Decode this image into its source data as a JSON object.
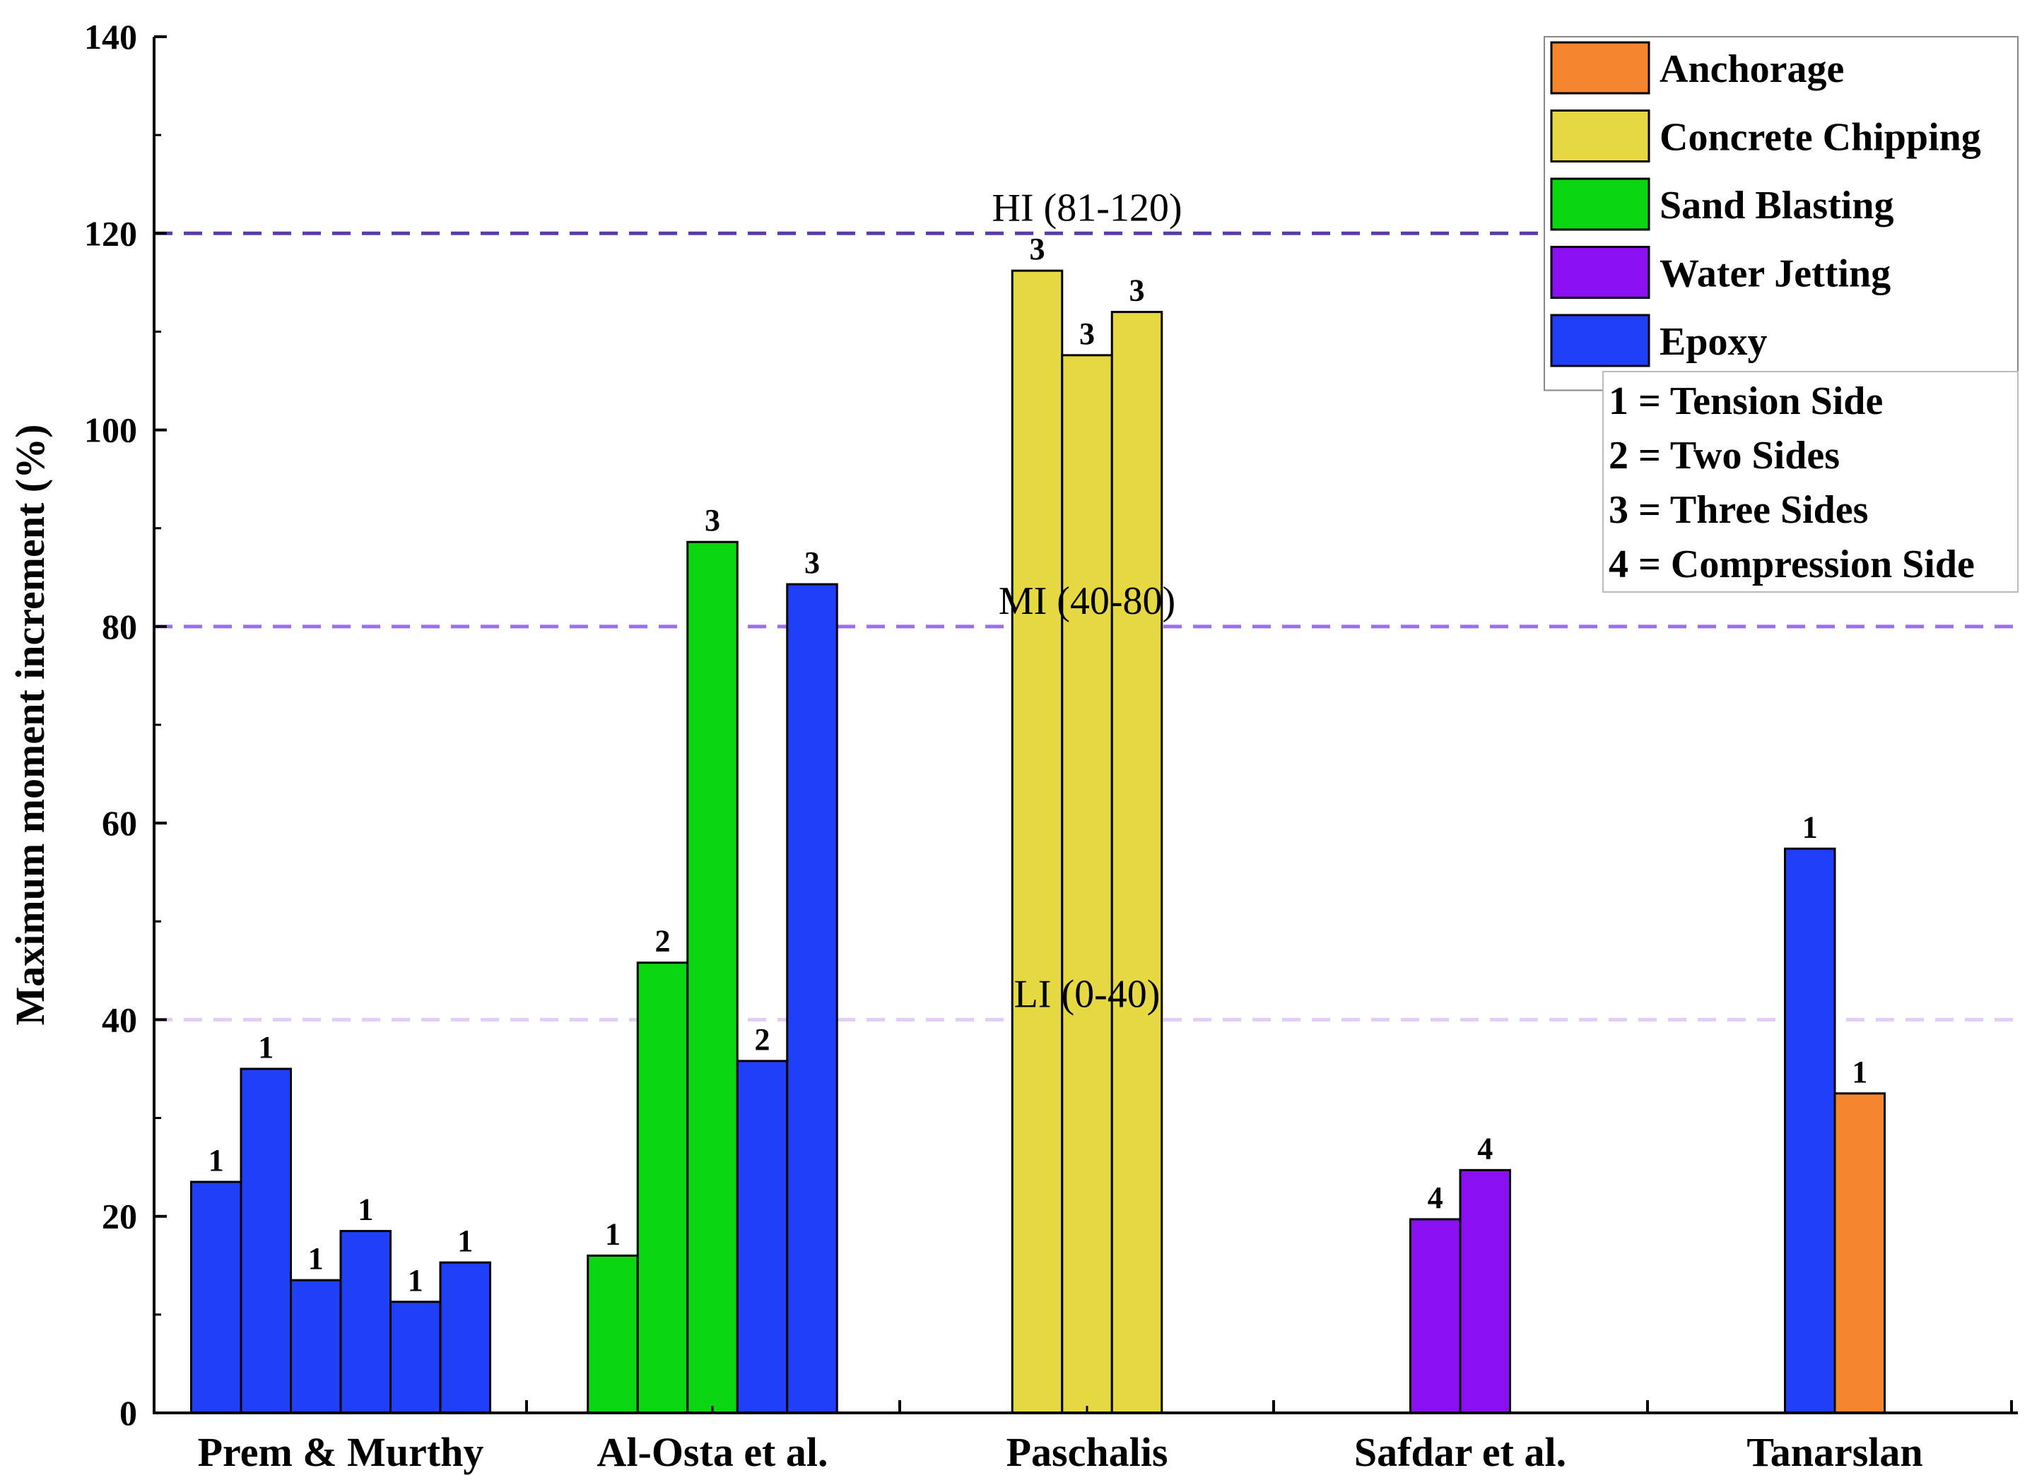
{
  "chart_data": {
    "type": "bar",
    "title": "",
    "xlabel": "",
    "ylabel": "Maximum moment increment (%)",
    "ylim": [
      0,
      140
    ],
    "yticks": [
      0,
      20,
      40,
      60,
      80,
      100,
      120,
      140
    ],
    "categories": [
      "Prem & Murthy",
      "Al-Osta et al.",
      "Paschalis",
      "Safdar et al.",
      "Tanarslan"
    ],
    "groups": [
      {
        "category": "Prem & Murthy",
        "bars": [
          {
            "value": 23.5,
            "type": "Epoxy",
            "label": "1"
          },
          {
            "value": 35.0,
            "type": "Epoxy",
            "label": "1"
          },
          {
            "value": 13.5,
            "type": "Epoxy",
            "label": "1"
          },
          {
            "value": 18.5,
            "type": "Epoxy",
            "label": "1"
          },
          {
            "value": 11.3,
            "type": "Epoxy",
            "label": "1"
          },
          {
            "value": 15.3,
            "type": "Epoxy",
            "label": "1"
          }
        ]
      },
      {
        "category": "Al-Osta et al.",
        "bars": [
          {
            "value": 16.0,
            "type": "Sand Blasting",
            "label": "1"
          },
          {
            "value": 45.8,
            "type": "Sand Blasting",
            "label": "2"
          },
          {
            "value": 88.6,
            "type": "Sand Blasting",
            "label": "3"
          },
          {
            "value": 35.8,
            "type": "Epoxy",
            "label": "2"
          },
          {
            "value": 84.3,
            "type": "Epoxy",
            "label": "3"
          }
        ]
      },
      {
        "category": "Paschalis",
        "bars": [
          {
            "value": 116.2,
            "type": "Concrete Chipping",
            "label": "3"
          },
          {
            "value": 107.6,
            "type": "Concrete Chipping",
            "label": "3"
          },
          {
            "value": 112.0,
            "type": "Concrete Chipping",
            "label": "3"
          }
        ]
      },
      {
        "category": "Safdar et al.",
        "bars": [
          {
            "value": 19.7,
            "type": "Water Jetting",
            "label": "4"
          },
          {
            "value": 24.7,
            "type": "Water Jetting",
            "label": "4"
          }
        ]
      },
      {
        "category": "Tanarslan",
        "bars": [
          {
            "value": 57.4,
            "type": "Epoxy",
            "label": "1"
          },
          {
            "value": 32.5,
            "type": "Anchorage",
            "label": "1"
          }
        ]
      }
    ],
    "reference_lines": [
      {
        "value": 120,
        "label": "HI (81-120)",
        "color": "#5a3ca8"
      },
      {
        "value": 80,
        "label": "MI (40-80)",
        "color": "#9b6ef0"
      },
      {
        "value": 40,
        "label": "LI (0-40)",
        "color": "#e3cdf8"
      }
    ],
    "legend": {
      "position": "top-right",
      "entries": [
        {
          "name": "Anchorage",
          "color": "#f5862d"
        },
        {
          "name": "Concrete Chipping",
          "color": "#e5d843"
        },
        {
          "name": "Sand Blasting",
          "color": "#0ad611"
        },
        {
          "name": "Water Jetting",
          "color": "#8a10f2"
        },
        {
          "name": "Epoxy",
          "color": "#1f40f7"
        }
      ]
    },
    "notes": [
      "1 = Tension Side",
      "2 = Two Sides",
      "3 = Three Sides",
      "4 = Compression Side"
    ]
  }
}
